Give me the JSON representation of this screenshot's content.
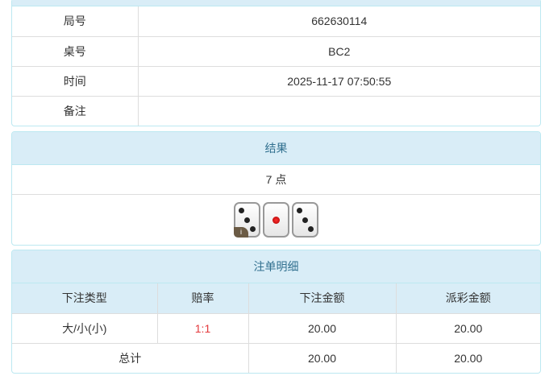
{
  "info": {
    "rows": [
      {
        "label": "局号",
        "value": "662630114"
      },
      {
        "label": "桌号",
        "value": "BC2"
      },
      {
        "label": "时间",
        "value": "2025-11-17 07:50:55"
      },
      {
        "label": "备注",
        "value": ""
      }
    ]
  },
  "result": {
    "title": "结果",
    "points": "7 点",
    "dice": [
      3,
      1,
      3
    ],
    "badge": "i"
  },
  "bets": {
    "title": "注单明细",
    "columns": [
      "下注类型",
      "赔率",
      "下注金额",
      "派彩金额"
    ],
    "rows": [
      {
        "type": "大/小(小)",
        "odds": "1:1",
        "amount": "20.00",
        "payout": "20.00"
      }
    ],
    "total": {
      "label": "总计",
      "amount": "20.00",
      "payout": "20.00"
    },
    "odds_color": "#e4393c"
  }
}
